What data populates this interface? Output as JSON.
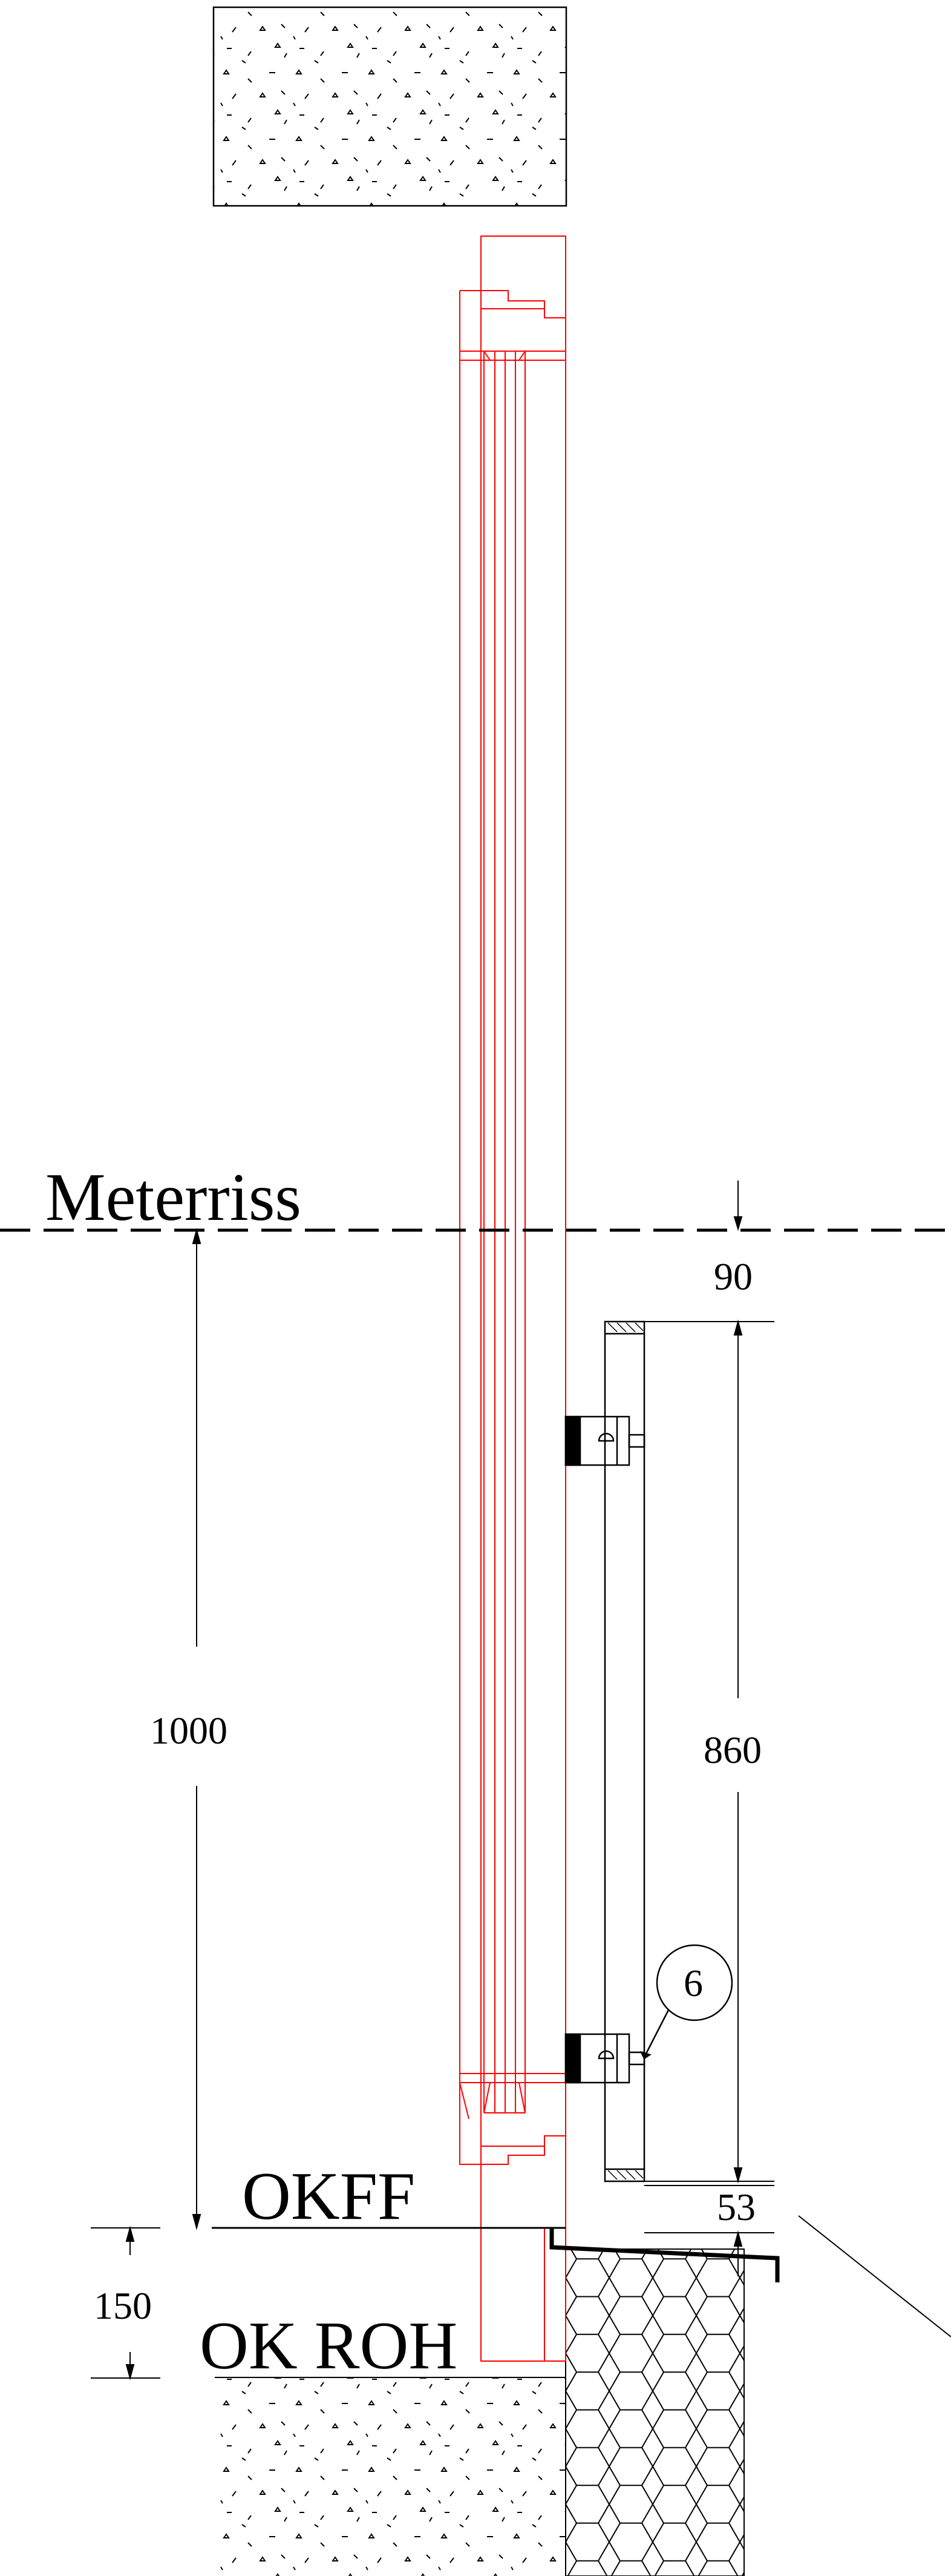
{
  "labels": {
    "meterriss": "Meterriss",
    "okff": "OKFF",
    "ok_roh": "OK ROH",
    "callout_number": "6"
  },
  "dimensions": {
    "d1000": "1000",
    "d150": "150",
    "d90": "90",
    "d860": "860",
    "d53": "53"
  },
  "colors": {
    "frame_red": "#ff0000",
    "line_black": "#000000"
  }
}
